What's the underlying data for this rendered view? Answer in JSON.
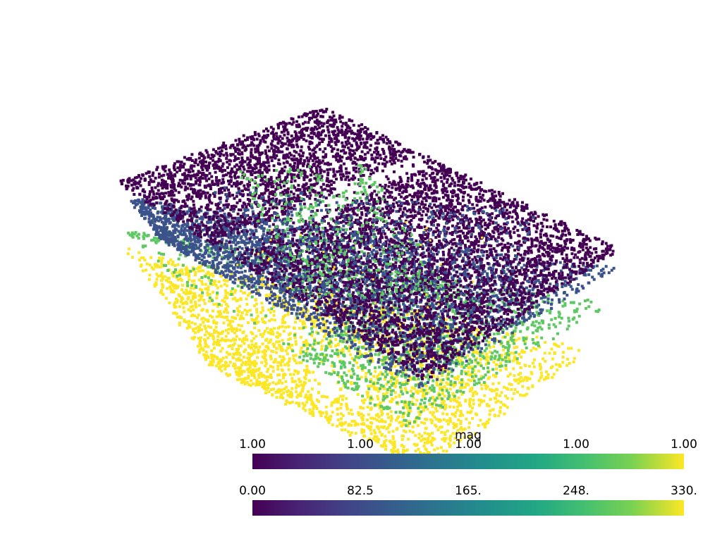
{
  "scene": {
    "colormap": "viridis",
    "background_color": "#ffffff",
    "point_colors": {
      "dark_purple": "#440154",
      "indigo": "#3b528b",
      "green": "#5ec962",
      "yellow": "#fde725"
    }
  },
  "scalar_bars": [
    {
      "title": "mag",
      "tick_labels": [
        "1.00",
        "1.00",
        "1.00",
        "1.00",
        "1.00"
      ]
    },
    {
      "title": "",
      "tick_labels": [
        "0.00",
        "82.5",
        "165.",
        "248.",
        "330."
      ]
    }
  ]
}
